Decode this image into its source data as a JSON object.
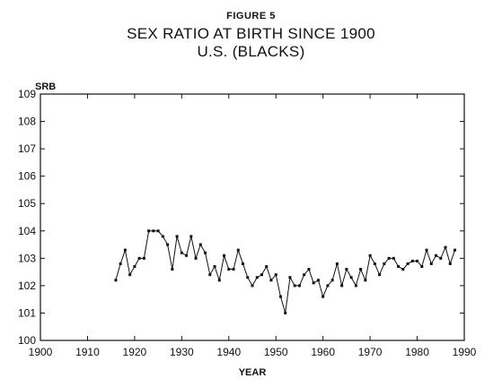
{
  "figure_label": "FIGURE 5",
  "title_line1": "SEX RATIO AT BIRTH SINCE 1900",
  "title_line2": "U.S. (BLACKS)",
  "chart_data": {
    "type": "line",
    "title": "SEX RATIO AT BIRTH SINCE 1900 U.S. (BLACKS)",
    "xlabel": "YEAR",
    "ylabel": "SRB",
    "xlim": [
      1900,
      1990
    ],
    "ylim": [
      100,
      109
    ],
    "xticks": [
      1900,
      1910,
      1920,
      1930,
      1940,
      1950,
      1960,
      1970,
      1980,
      1990
    ],
    "yticks": [
      100,
      101,
      102,
      103,
      104,
      105,
      106,
      107,
      108,
      109
    ],
    "grid": false,
    "markers": true,
    "series": [
      {
        "x": [
          1916,
          1917,
          1918,
          1919,
          1920,
          1921,
          1922,
          1923,
          1924,
          1925,
          1926,
          1927,
          1928,
          1929,
          1930,
          1931,
          1932,
          1933,
          1934,
          1935,
          1936,
          1937,
          1938,
          1939,
          1940,
          1941,
          1942,
          1943,
          1944,
          1945,
          1946,
          1947,
          1948,
          1949,
          1950,
          1951,
          1952,
          1953,
          1954,
          1955,
          1956,
          1957,
          1958,
          1959,
          1960,
          1961,
          1962,
          1963,
          1964,
          1965,
          1966,
          1967,
          1968,
          1969,
          1970,
          1971,
          1972,
          1973,
          1974,
          1975,
          1976,
          1977,
          1978,
          1979,
          1980,
          1981,
          1982,
          1983,
          1984,
          1985,
          1986,
          1987,
          1988
        ],
        "values": [
          102.2,
          102.8,
          103.3,
          102.4,
          102.7,
          103.0,
          103.0,
          104.0,
          104.0,
          104.0,
          103.8,
          103.5,
          102.6,
          103.8,
          103.2,
          103.1,
          103.8,
          103.0,
          103.5,
          103.2,
          102.4,
          102.7,
          102.2,
          103.1,
          102.6,
          102.6,
          103.3,
          102.8,
          102.3,
          102.0,
          102.3,
          102.4,
          102.7,
          102.2,
          102.4,
          101.6,
          101.0,
          102.3,
          102.0,
          102.0,
          102.4,
          102.6,
          102.1,
          102.2,
          101.6,
          102.0,
          102.2,
          102.8,
          102.0,
          102.6,
          102.3,
          102.0,
          102.6,
          102.2,
          103.1,
          102.8,
          102.4,
          102.8,
          103.0,
          103.0,
          102.7,
          102.6,
          102.8,
          102.9,
          102.9,
          102.7,
          103.3,
          102.8,
          103.1,
          103.0,
          103.4,
          102.8,
          103.3
        ]
      }
    ]
  }
}
